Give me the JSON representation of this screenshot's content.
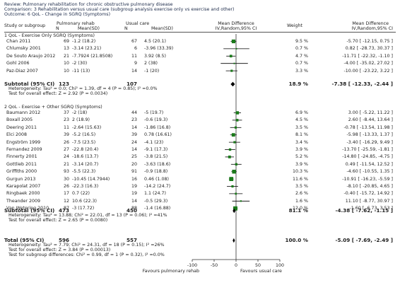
{
  "header": {
    "review": "Review:  Pulmonary rehabilitation for chronic obstructive pulmonary disease",
    "comparison": "Comparison:  3 Rehabilitation versus usual care (subgroup analysis exercise only vs exercise and other)",
    "outcome": "Outcome:  6 QoL - Change in SGRQ (Symptoms)"
  },
  "columns": {
    "study": "Study or subgroup",
    "exp_group": "Pulmonary rehab",
    "ctl_group": "Usual care",
    "n": "N",
    "meansd": "Mean(SD)",
    "md_title": "Mean Difference",
    "md_method": "IV,Random,95% CI",
    "weight": "Weight",
    "md_title2": "Mean Difference",
    "md_method2": "IV,Random,95% CI"
  },
  "subgroups": [
    {
      "title": "1 QoL - Exercise Only SGRQ (Symptoms)",
      "studies": [
        {
          "name": "Chan 2011",
          "n1": "69",
          "ms1": "-1.2 (18.2)",
          "n2": "67",
          "ms2": "4.5 (20.1)",
          "weight": "9.5 %",
          "ci": "-5.70 [ -12.15, 0.75 ]"
        },
        {
          "name": "Chlumsky 2001",
          "n1": "13",
          "ms1": "-3.14 (23.21)",
          "n2": "6",
          "ms2": "-3.96 (33.39)",
          "weight": "0.7 %",
          "ci": "0.82 [ -28.73, 30.37 ]"
        },
        {
          "name": "De Souto Araujo 2012",
          "n1": "21",
          "ms1": "-7.7924 (21.8508)",
          "n2": "11",
          "ms2": "3.92 (8.5)",
          "weight": "4.7 %",
          "ci": "-11.71 [ -22.32, -1.10 ]"
        },
        {
          "name": "Gohl 2006",
          "n1": "10",
          "ms1": "-2 (30)",
          "n2": "9",
          "ms2": "2 (38)",
          "weight": "0.7 %",
          "ci": "-4.00 [ -35.02, 27.02 ]"
        },
        {
          "name": "Paz-Diaz 2007",
          "n1": "10",
          "ms1": "-11 (13)",
          "n2": "14",
          "ms2": "-1 (20)",
          "weight": "3.3 %",
          "ci": "-10.00 [ -23.22, 3.22 ]"
        }
      ],
      "subtotal": {
        "label": "Subtotal (95% CI)",
        "n1": "123",
        "n2": "107",
        "weight": "18.9 %",
        "ci": "-7.38 [ -12.33, -2.44 ]"
      },
      "heterogeneity": "Heterogeneity: Tau² = 0.0; Chi² = 1.39, df = 4 (P = 0.85); I² =0.0%",
      "effect_test": "Test for overall effect: Z = 2.92 (P = 0.0034)"
    },
    {
      "title": "2 QoL - Exercise + Other SGRQ (Symptoms)",
      "studies": [
        {
          "name": "Baumann 2012",
          "n1": "37",
          "ms1": "-2 (18)",
          "n2": "44",
          "ms2": "-5 (19.7)",
          "weight": "6.9 %",
          "ci": "3.00 [ -5.22, 11.22 ]"
        },
        {
          "name": "Boxall 2005",
          "n1": "23",
          "ms1": "2 (18.9)",
          "n2": "23",
          "ms2": "-0.6 (19.3)",
          "weight": "4.5 %",
          "ci": "2.60 [ -8.44, 13.64 ]"
        },
        {
          "name": "Deering 2011",
          "n1": "11",
          "ms1": "-2.64 (15.63)",
          "n2": "14",
          "ms2": "-1.86 (16.8)",
          "weight": "3.5 %",
          "ci": "-0.78 [ -13.54, 11.98 ]"
        },
        {
          "name": "Elci 2008",
          "n1": "39",
          "ms1": "-5.2 (16.5)",
          "n2": "39",
          "ms2": "0.78 (16.61)",
          "weight": "8.1 %",
          "ci": "-5.98 [ -13.33, 1.37 ]"
        },
        {
          "name": "Engström 1999",
          "n1": "26",
          "ms1": "-7.5 (23.5)",
          "n2": "24",
          "ms2": "-4.1 (23)",
          "weight": "3.4 %",
          "ci": "-3.40 [ -16.29, 9.49 ]"
        },
        {
          "name": "Fernandez 2009",
          "n1": "27",
          "ms1": "-22.8 (20.4)",
          "n2": "14",
          "ms2": "-9.1 (17.3)",
          "weight": "3.9 %",
          "ci": "-13.70 [ -25.59, -1.81 ]"
        },
        {
          "name": "Finnerty 2001",
          "n1": "24",
          "ms1": "-18.6 (13.7)",
          "n2": "25",
          "ms2": "-3.8 (21.5)",
          "weight": "5.2 %",
          "ci": "-14.80 [ -24.85, -4.75 ]"
        },
        {
          "name": "Gottlieb 2011",
          "n1": "21",
          "ms1": "-3.14 (20.7)",
          "n2": "20",
          "ms2": "-3.63 (18.6)",
          "weight": "3.9 %",
          "ci": "0.49 [ -11.54, 12.52 ]"
        },
        {
          "name": "Griffiths 2000",
          "n1": "93",
          "ms1": "-5.5 (22.3)",
          "n2": "91",
          "ms2": "-0.9 (18.8)",
          "weight": "10.3 %",
          "ci": "-4.60 [ -10.55, 1.35 ]"
        },
        {
          "name": "Gurgun 2013",
          "n1": "30",
          "ms1": "-10.45 (14.7944)",
          "n2": "16",
          "ms2": "0.46 (1.08)",
          "weight": "11.6 %",
          "ci": "-10.91 [ -16.23, -5.59 ]"
        },
        {
          "name": "Karapolat 2007",
          "n1": "26",
          "ms1": "-22.3 (16.3)",
          "n2": "19",
          "ms2": "-14.2 (24.7)",
          "weight": "3.5 %",
          "ci": "-8.10 [ -20.85, 4.65 ]"
        },
        {
          "name": "Ringbaek 2000",
          "n1": "17",
          "ms1": "0.7 (22)",
          "n2": "19",
          "ms2": "1.1 (24.7)",
          "weight": "2.6 %",
          "ci": "-0.40 [ -15.72, 14.92 ]"
        },
        {
          "name": "Theander 2009",
          "n1": "12",
          "ms1": "10.6 (22.3)",
          "n2": "14",
          "ms2": "-0.5 (29.3)",
          "weight": "1.6 %",
          "ci": "11.10 [ -8.77, 30.97 ]"
        },
        {
          "name": "Van Wetering 2010",
          "n1": "87",
          "ms1": "-3 (17.72)",
          "n2": "88",
          "ms2": "-1.4 (16.88)",
          "weight": "12.0 %",
          "ci": "-1.60 [ -6.73, 3.53 ]"
        }
      ],
      "subtotal": {
        "label": "Subtotal (95% CI)",
        "n1": "473",
        "n2": "450",
        "weight": "81.1 %",
        "ci": "-4.38 [ -7.62, -1.15 ]"
      },
      "heterogeneity": "Heterogeneity: Tau² = 13.88; Chi² = 22.01, df = 13 (P = 0.06); I² =41%",
      "effect_test": "Test for overall effect: Z = 2.65 (P = 0.0080)"
    }
  ],
  "total": {
    "label": "Total (95% CI)",
    "n1": "596",
    "n2": "557",
    "weight": "100.0 %",
    "ci": "-5.09 [ -7.69, -2.49 ]",
    "heterogeneity": "Heterogeneity: Tau² = 7.79; Chi² = 24.31, df = 18 (P = 0.15); I² =26%",
    "effect_test": "Test for overall effect: Z = 3.84 (P = 0.00013)",
    "subgroup_test": "Test for subgroup differences: Chi² = 0.99, df = 1 (P = 0.32), I² =0.0%"
  },
  "axis": {
    "ticks": [
      "-100",
      "-50",
      "0",
      "50",
      "100"
    ],
    "favours_left": "Favours pulmonary rehab",
    "favours_right": "Favours usual care"
  },
  "colors": {
    "square": "#1a7a1a",
    "line": "#000000",
    "text": "#222222"
  },
  "chart_data": {
    "type": "forest",
    "xlim": [
      -100,
      100
    ],
    "ticks": [
      -100,
      -50,
      0,
      50,
      100
    ],
    "studies": [
      {
        "name": "Chan 2011",
        "md": -5.7,
        "lo": -12.15,
        "hi": 0.75,
        "w": 9.5
      },
      {
        "name": "Chlumsky 2001",
        "md": 0.82,
        "lo": -28.73,
        "hi": 30.37,
        "w": 0.7
      },
      {
        "name": "De Souto Araujo 2012",
        "md": -11.71,
        "lo": -22.32,
        "hi": -1.1,
        "w": 4.7
      },
      {
        "name": "Gohl 2006",
        "md": -4.0,
        "lo": -35.02,
        "hi": 27.02,
        "w": 0.7
      },
      {
        "name": "Paz-Diaz 2007",
        "md": -10.0,
        "lo": -23.22,
        "hi": 3.22,
        "w": 3.3
      },
      {
        "name": "Baumann 2012",
        "md": 3.0,
        "lo": -5.22,
        "hi": 11.22,
        "w": 6.9
      },
      {
        "name": "Boxall 2005",
        "md": 2.6,
        "lo": -8.44,
        "hi": 13.64,
        "w": 4.5
      },
      {
        "name": "Deering 2011",
        "md": -0.78,
        "lo": -13.54,
        "hi": 11.98,
        "w": 3.5
      },
      {
        "name": "Elci 2008",
        "md": -5.98,
        "lo": -13.33,
        "hi": 1.37,
        "w": 8.1
      },
      {
        "name": "Engström 1999",
        "md": -3.4,
        "lo": -16.29,
        "hi": 9.49,
        "w": 3.4
      },
      {
        "name": "Fernandez 2009",
        "md": -13.7,
        "lo": -25.59,
        "hi": -1.81,
        "w": 3.9
      },
      {
        "name": "Finnerty 2001",
        "md": -14.8,
        "lo": -24.85,
        "hi": -4.75,
        "w": 5.2
      },
      {
        "name": "Gottlieb 2011",
        "md": 0.49,
        "lo": -11.54,
        "hi": 12.52,
        "w": 3.9
      },
      {
        "name": "Griffiths 2000",
        "md": -4.6,
        "lo": -10.55,
        "hi": 1.35,
        "w": 10.3
      },
      {
        "name": "Gurgun 2013",
        "md": -10.91,
        "lo": -16.23,
        "hi": -5.59,
        "w": 11.6
      },
      {
        "name": "Karapolat 2007",
        "md": -8.1,
        "lo": -20.85,
        "hi": 4.65,
        "w": 3.5
      },
      {
        "name": "Ringbaek 2000",
        "md": -0.4,
        "lo": -15.72,
        "hi": 14.92,
        "w": 2.6
      },
      {
        "name": "Theander 2009",
        "md": 11.1,
        "lo": -8.77,
        "hi": 30.97,
        "w": 1.6
      },
      {
        "name": "Van Wetering 2010",
        "md": -1.6,
        "lo": -6.73,
        "hi": 3.53,
        "w": 12.0
      }
    ],
    "subtotals": [
      {
        "name": "Subtotal 1",
        "md": -7.38,
        "lo": -12.33,
        "hi": -2.44
      },
      {
        "name": "Subtotal 2",
        "md": -4.38,
        "lo": -7.62,
        "hi": -1.15
      }
    ],
    "total": {
      "name": "Total",
      "md": -5.09,
      "lo": -7.69,
      "hi": -2.49
    }
  }
}
